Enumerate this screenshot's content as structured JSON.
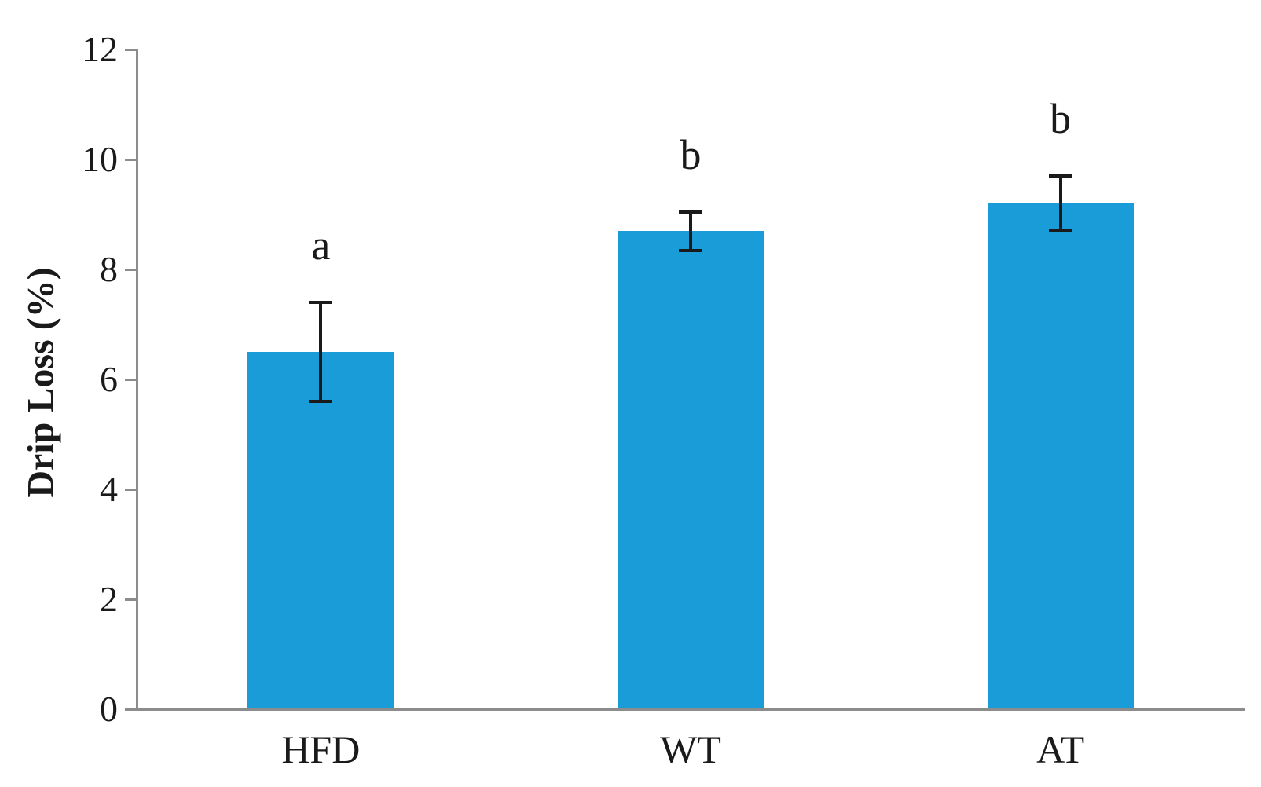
{
  "chart_data": {
    "type": "bar",
    "title": "",
    "categories": [
      "HFD",
      "WT",
      "AT"
    ],
    "values": [
      6.5,
      8.7,
      9.2
    ],
    "error_bars": [
      0.9,
      0.35,
      0.5
    ],
    "significance_labels": [
      "a",
      "b",
      "b"
    ],
    "xlabel": "",
    "ylabel": "Drip Loss (%)",
    "ylim": [
      0,
      12
    ],
    "yticks": [
      0,
      2,
      4,
      6,
      8,
      10,
      12
    ],
    "grid": "off",
    "legend": "none",
    "bar_color": "#1a9cd8",
    "axis_color": "#8c8c8c",
    "error_bar_color": "#1a1a1a",
    "text_color": "#1a1a1a"
  }
}
